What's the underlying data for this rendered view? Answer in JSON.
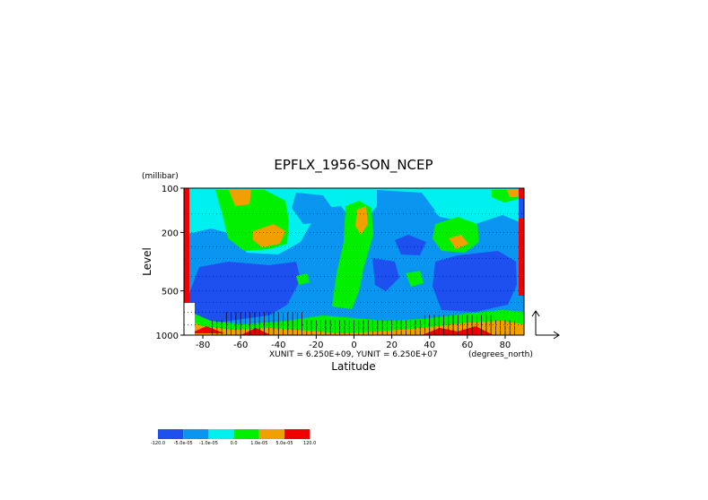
{
  "chart_data": {
    "type": "contour",
    "title": "EPFLX_1956-SON_NCEP",
    "xlabel": "Latitude",
    "ylabel": "Level",
    "yunit_label": "(millibar)",
    "xunit_label": "(degrees_north)",
    "vector_scale_label": "XUNIT = 6.250E+09, YUNIT = 6.250E+07",
    "xlim": [
      -90,
      90
    ],
    "ylim": [
      1000,
      100
    ],
    "yscale": "log",
    "x_ticks": [
      "-80",
      "-60",
      "-40",
      "-20",
      "0",
      "20",
      "40",
      "60",
      "80"
    ],
    "x_tick_values": [
      -80,
      -60,
      -40,
      -20,
      0,
      20,
      40,
      60,
      80
    ],
    "y_ticks": [
      "100",
      "200",
      "500",
      "1000"
    ],
    "y_tick_values": [
      100,
      200,
      500,
      1000
    ],
    "grid": "dotted horizontal at levels",
    "colorbar": {
      "colors": [
        "#1e50f0",
        "#0a96f0",
        "#00f0f0",
        "#00f000",
        "#f0a000",
        "#f00000"
      ],
      "labels": [
        "-120.0",
        "-5.0e-05",
        "-1.0e-05",
        "0.0",
        "1.0e-05",
        "5.0e-05",
        "120.0"
      ]
    }
  }
}
